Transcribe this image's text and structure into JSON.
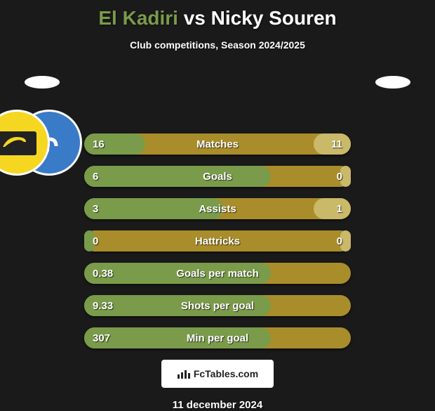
{
  "title": {
    "player1": "El Kadiri",
    "vs": "vs",
    "player2": "Nicky Souren"
  },
  "subtitle": "Club competitions, Season 2024/2025",
  "stats": [
    {
      "label": "Matches",
      "left_val": "16",
      "right_val": "11",
      "left_pct": 23,
      "right_pct": 14
    },
    {
      "label": "Goals",
      "left_val": "6",
      "right_val": "0",
      "left_pct": 70,
      "right_pct": 4
    },
    {
      "label": "Assists",
      "left_val": "3",
      "right_val": "1",
      "left_pct": 52,
      "right_pct": 14
    },
    {
      "label": "Hattricks",
      "left_val": "0",
      "right_val": "0",
      "left_pct": 4,
      "right_pct": 4
    },
    {
      "label": "Goals per match",
      "left_val": "0.38",
      "right_val": "",
      "left_pct": 70,
      "right_pct": 0
    },
    {
      "label": "Shots per goal",
      "left_val": "9.33",
      "right_val": "",
      "left_pct": 70,
      "right_pct": 0
    },
    {
      "label": "Min per goal",
      "left_val": "307",
      "right_val": "",
      "left_pct": 70,
      "right_pct": 0
    }
  ],
  "colors": {
    "row_bg": "#a98d2a",
    "bar_left": "#7a9b4a",
    "bar_right": "#c9b968",
    "background": "#1a1a1a",
    "text": "#ffffff"
  },
  "footer_brand": "FcTables.com",
  "date": "11 december 2024"
}
